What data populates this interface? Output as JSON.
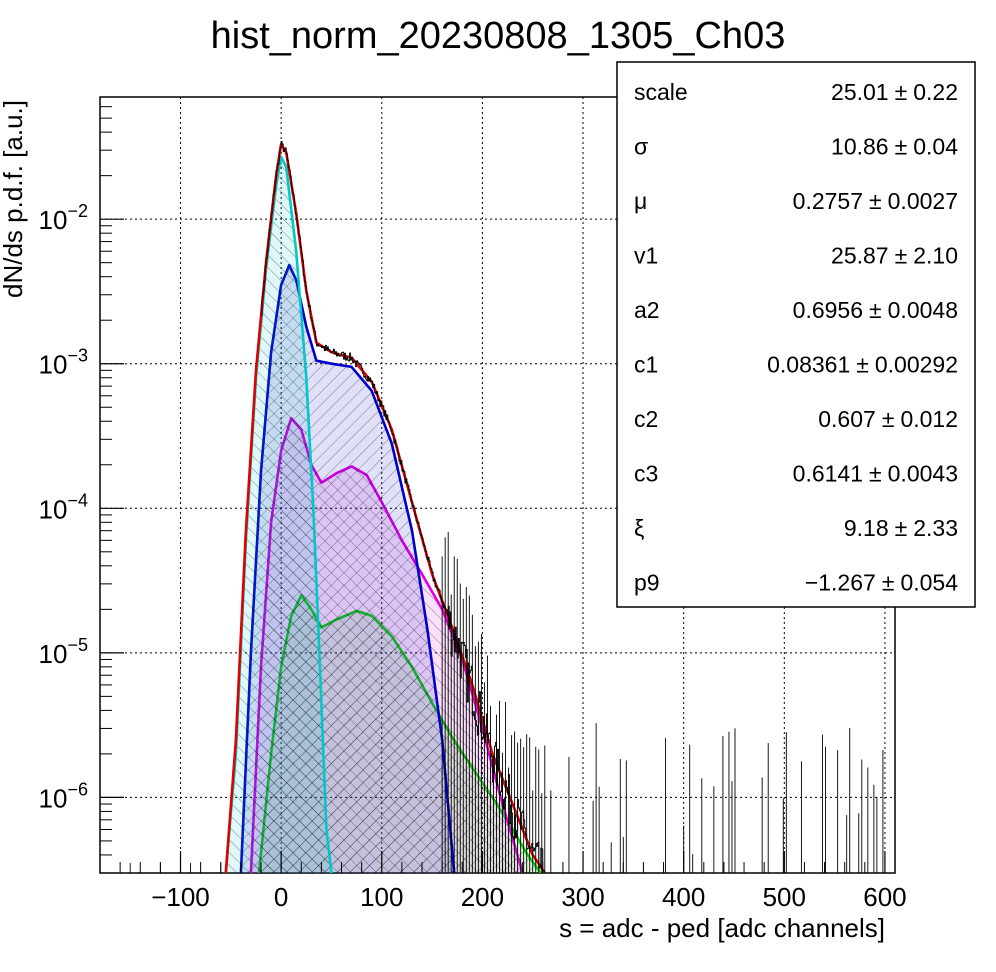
{
  "chart_data": {
    "type": "line",
    "title": "hist_norm_20230808_1305_Ch03",
    "xlabel": "s = adc - ped [adc channels]",
    "ylabel": "dN/ds p.d.f. [a.u.]",
    "xlim": [
      -180,
      610
    ],
    "ylim": [
      3e-07,
      0.07
    ],
    "yscale": "log",
    "grid": true,
    "x_ticks": [
      {
        "value": -100,
        "label": "−100"
      },
      {
        "value": 0,
        "label": "0"
      },
      {
        "value": 100,
        "label": "100"
      },
      {
        "value": 200,
        "label": "200"
      },
      {
        "value": 300,
        "label": "300"
      },
      {
        "value": 400,
        "label": "400"
      },
      {
        "value": 500,
        "label": "500"
      },
      {
        "value": 600,
        "label": "600"
      }
    ],
    "y_ticks": [
      {
        "value": 1e-06,
        "base": "10",
        "exp": "−6"
      },
      {
        "value": 1e-05,
        "base": "10",
        "exp": "−5"
      },
      {
        "value": 0.0001,
        "base": "10",
        "exp": "−4"
      },
      {
        "value": 0.001,
        "base": "10",
        "exp": "−3"
      },
      {
        "value": 0.01,
        "base": "10",
        "exp": "−2"
      }
    ],
    "series": [
      {
        "color": "#00c8c8",
        "hatch": true,
        "points": [
          [
            -55,
            3e-07
          ],
          [
            -45,
            2e-06
          ],
          [
            -35,
            6e-05
          ],
          [
            -25,
            0.0008
          ],
          [
            -15,
            0.0045
          ],
          [
            -5,
            0.017
          ],
          [
            0,
            0.027
          ],
          [
            5,
            0.023
          ],
          [
            15,
            0.006
          ],
          [
            25,
            0.0008
          ],
          [
            32,
            0.0001
          ],
          [
            38,
            1e-05
          ],
          [
            45,
            6e-07
          ],
          [
            50,
            3e-07
          ]
        ]
      },
      {
        "color": "#0000c8",
        "hatch": true,
        "points": [
          [
            -40,
            3e-07
          ],
          [
            -30,
            1e-05
          ],
          [
            -20,
            0.00018
          ],
          [
            -10,
            0.0012
          ],
          [
            0,
            0.0035
          ],
          [
            8,
            0.0048
          ],
          [
            15,
            0.0038
          ],
          [
            25,
            0.0018
          ],
          [
            35,
            0.00105
          ],
          [
            50,
            0.001
          ],
          [
            70,
            0.00095
          ],
          [
            90,
            0.00065
          ],
          [
            110,
            0.00028
          ],
          [
            130,
            7e-05
          ],
          [
            145,
            1.5e-05
          ],
          [
            160,
            2.5e-06
          ],
          [
            172,
            3e-07
          ]
        ]
      },
      {
        "color": "#e000e0",
        "hatch": true,
        "points": [
          [
            -30,
            3e-07
          ],
          [
            -20,
            8e-06
          ],
          [
            -10,
            8e-05
          ],
          [
            0,
            0.00025
          ],
          [
            10,
            0.00042
          ],
          [
            20,
            0.00035
          ],
          [
            30,
            0.0002
          ],
          [
            40,
            0.00015
          ],
          [
            55,
            0.000175
          ],
          [
            70,
            0.000195
          ],
          [
            85,
            0.00017
          ],
          [
            100,
            0.00011
          ],
          [
            120,
            6e-05
          ],
          [
            140,
            3.5e-05
          ],
          [
            160,
            2e-05
          ],
          [
            180,
            9e-06
          ],
          [
            200,
            3e-06
          ],
          [
            220,
            9e-07
          ],
          [
            240,
            3e-07
          ]
        ]
      },
      {
        "color": "#00e000",
        "hatch": true,
        "points": [
          [
            -22,
            3e-07
          ],
          [
            -10,
            2e-06
          ],
          [
            0,
            8e-06
          ],
          [
            10,
            1.8e-05
          ],
          [
            20,
            2.5e-05
          ],
          [
            30,
            2e-05
          ],
          [
            40,
            1.5e-05
          ],
          [
            55,
            1.7e-05
          ],
          [
            75,
            1.95e-05
          ],
          [
            90,
            1.8e-05
          ],
          [
            110,
            1.3e-05
          ],
          [
            130,
            8e-06
          ],
          [
            150,
            4.5e-06
          ],
          [
            170,
            2.6e-06
          ],
          [
            190,
            1.6e-06
          ],
          [
            210,
            1e-06
          ],
          [
            230,
            6e-07
          ],
          [
            245,
            4e-07
          ],
          [
            258,
            3e-07
          ]
        ]
      },
      {
        "color": "#e00000",
        "hatch": false,
        "points": [
          [
            -55,
            3e-07
          ],
          [
            -45,
            2.5e-06
          ],
          [
            -35,
            7e-05
          ],
          [
            -25,
            0.0009
          ],
          [
            -15,
            0.005
          ],
          [
            -5,
            0.02
          ],
          [
            0,
            0.033
          ],
          [
            5,
            0.029
          ],
          [
            15,
            0.011
          ],
          [
            25,
            0.0032
          ],
          [
            35,
            0.0014
          ],
          [
            50,
            0.0012
          ],
          [
            70,
            0.0011
          ],
          [
            90,
            0.00075
          ],
          [
            110,
            0.00035
          ],
          [
            130,
            0.00011
          ],
          [
            150,
            3.5e-05
          ],
          [
            170,
            1.5e-05
          ],
          [
            190,
            6e-06
          ],
          [
            210,
            2e-06
          ],
          [
            230,
            9e-07
          ],
          [
            250,
            4e-07
          ],
          [
            262,
            3e-07
          ]
        ]
      }
    ],
    "stats": [
      {
        "name": "scale",
        "value": "25.01",
        "error": "0.22"
      },
      {
        "name": "σ",
        "value": "10.86",
        "error": "0.04"
      },
      {
        "name": "μ",
        "value": "0.2757",
        "error": "0.0027"
      },
      {
        "name": "v1",
        "value": "25.87",
        "error": "2.10"
      },
      {
        "name": "a2",
        "value": "0.6956",
        "error": "0.0048"
      },
      {
        "name": "c1",
        "value": "0.08361",
        "error": "0.00292"
      },
      {
        "name": "c2",
        "value": "0.607",
        "error": "0.012"
      },
      {
        "name": "c3",
        "value": "0.6141",
        "error": "0.0043"
      },
      {
        "name": "ξ",
        "value": "9.18",
        "error": "2.33"
      },
      {
        "name": "p9",
        "value": "−1.267",
        "error": "0.054"
      }
    ],
    "pm_symbol": "±"
  }
}
